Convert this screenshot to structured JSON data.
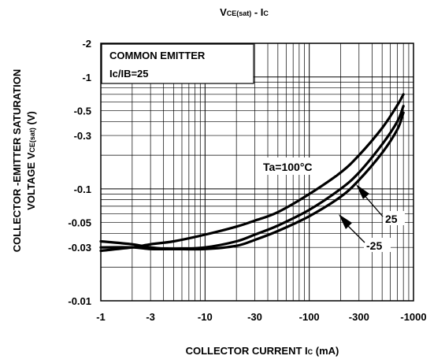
{
  "chart_data": {
    "type": "line",
    "title": {
      "main": "V",
      "sub": "CE(sat)",
      "tail": " - I",
      "tail_sub": "C"
    },
    "xlabel": {
      "main": "COLLECTOR CURRENT I",
      "sub": "C",
      "tail": " (mA)"
    },
    "ylabel": {
      "line1": "COLLECTOR -EMITTER SATURATION",
      "line2_main": "VOLTAGE V",
      "line2_sub": "CE(sat)",
      "line2_tail": "  (V)"
    },
    "x_scale": "log",
    "y_scale": "log",
    "xlim": [
      -1,
      -1000
    ],
    "ylim": [
      -0.01,
      -2
    ],
    "x_ticks": [
      {
        "value": -1,
        "label": "-1"
      },
      {
        "value": -3,
        "label": "-3"
      },
      {
        "value": -10,
        "label": "-10"
      },
      {
        "value": -30,
        "label": "-30"
      },
      {
        "value": -100,
        "label": "-100"
      },
      {
        "value": -300,
        "label": "-300"
      },
      {
        "value": -1000,
        "label": "-1000"
      }
    ],
    "y_ticks": [
      {
        "value": -2,
        "label": "-2"
      },
      {
        "value": -1,
        "label": "-1"
      },
      {
        "value": -0.5,
        "label": "-0.5"
      },
      {
        "value": -0.3,
        "label": "-0.3"
      },
      {
        "value": -0.1,
        "label": "-0.1"
      },
      {
        "value": -0.05,
        "label": "-0.05"
      },
      {
        "value": -0.03,
        "label": "-0.03"
      },
      {
        "value": -0.01,
        "label": "-0.01"
      }
    ],
    "grid": true,
    "annotations": {
      "condition_line1": "COMMON EMITTER",
      "condition_line2": "Ic/IB=25"
    },
    "series": [
      {
        "name": "Ta=100°C",
        "x": [
          -1,
          -2,
          -3,
          -5,
          -10,
          -20,
          -30,
          -50,
          -100,
          -200,
          -300,
          -500,
          -700,
          -800
        ],
        "y": [
          -0.028,
          -0.03,
          -0.032,
          -0.034,
          -0.039,
          -0.046,
          -0.052,
          -0.062,
          -0.09,
          -0.14,
          -0.2,
          -0.35,
          -0.56,
          -0.7
        ]
      },
      {
        "name": "25",
        "x": [
          -1,
          -2,
          -3,
          -5,
          -10,
          -20,
          -30,
          -50,
          -100,
          -200,
          -300,
          -500,
          -700,
          -800
        ],
        "y": [
          -0.034,
          -0.032,
          -0.03,
          -0.029,
          -0.03,
          -0.034,
          -0.039,
          -0.047,
          -0.065,
          -0.1,
          -0.14,
          -0.25,
          -0.4,
          -0.55
        ]
      },
      {
        "name": "-25",
        "x": [
          -1,
          -2,
          -3,
          -5,
          -10,
          -20,
          -30,
          -50,
          -100,
          -200,
          -300,
          -500,
          -700,
          -800
        ],
        "y": [
          -0.03,
          -0.03,
          -0.029,
          -0.029,
          -0.029,
          -0.031,
          -0.035,
          -0.042,
          -0.057,
          -0.085,
          -0.12,
          -0.21,
          -0.34,
          -0.48
        ]
      }
    ]
  }
}
